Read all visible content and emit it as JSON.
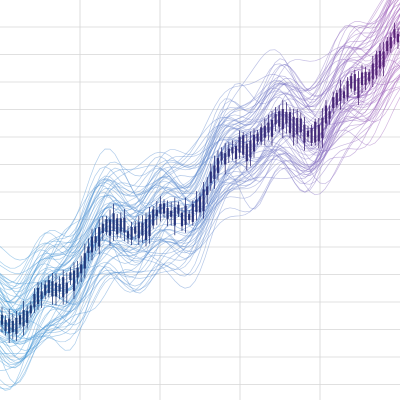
{
  "grid": true
}
